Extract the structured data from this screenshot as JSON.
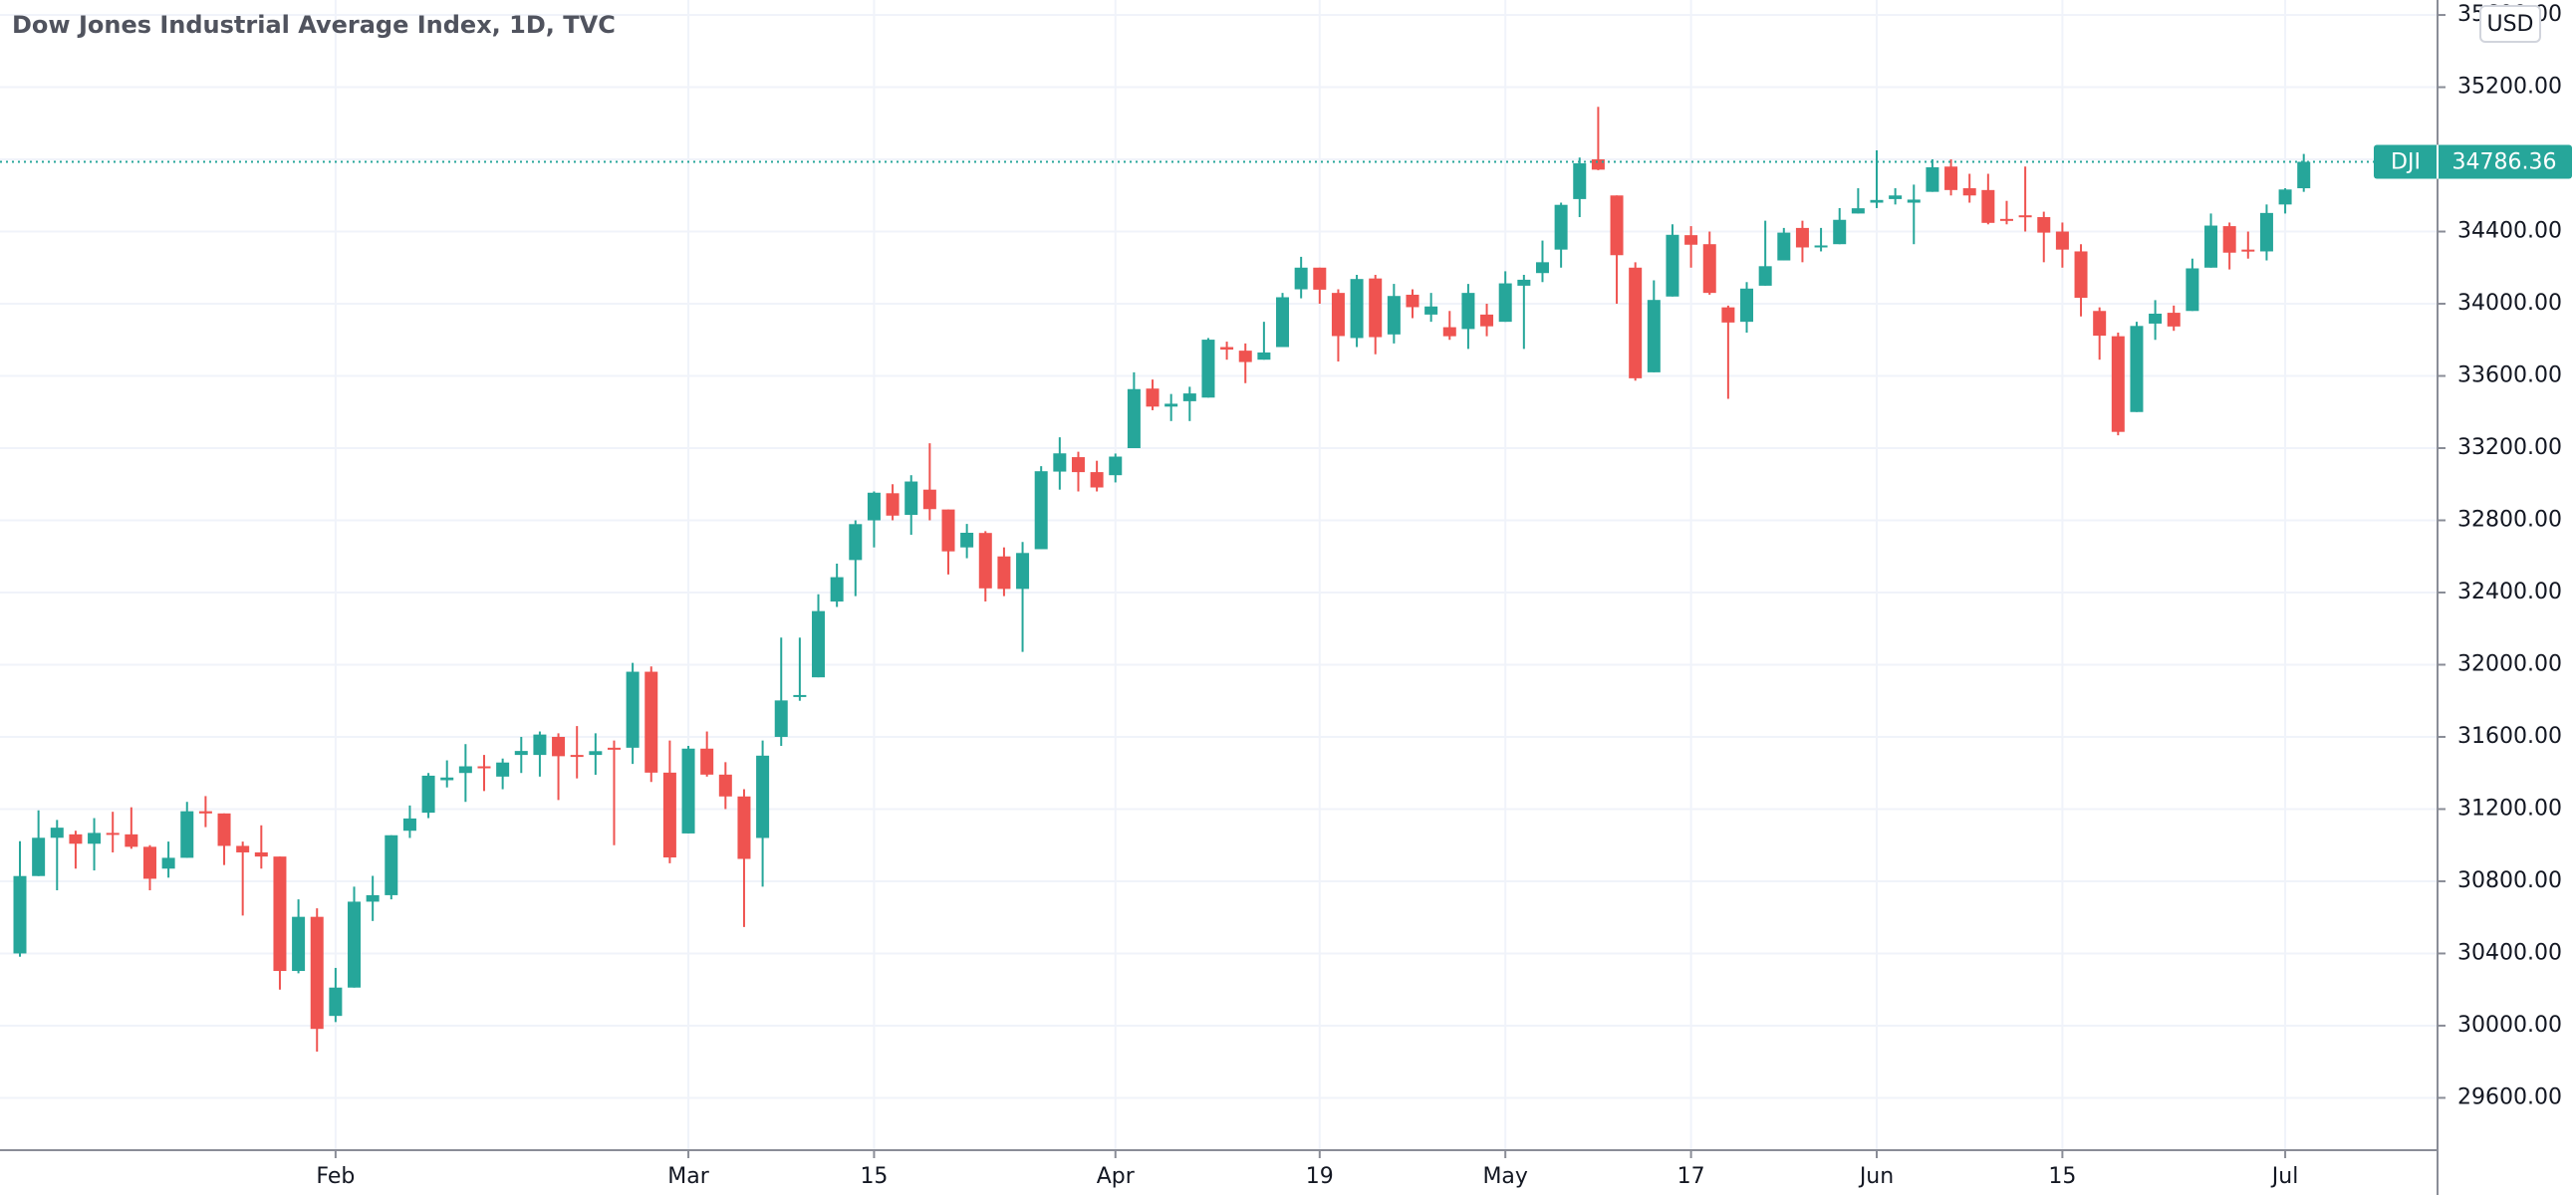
{
  "chart_data": {
    "type": "candlestick",
    "title": "Dow Jones Industrial Average Index, 1D, TVC",
    "currency": "USD",
    "up_color": "#26a69a",
    "down_color": "#ef5350",
    "grid": true,
    "ylim": [
      29310,
      35683
    ],
    "yticks": [
      {
        "value": 29600,
        "label": "29600.00"
      },
      {
        "value": 30000,
        "label": "30000.00"
      },
      {
        "value": 30400,
        "label": "30400.00"
      },
      {
        "value": 30800,
        "label": "30800.00"
      },
      {
        "value": 31200,
        "label": "31200.00"
      },
      {
        "value": 31600,
        "label": "31600.00"
      },
      {
        "value": 32000,
        "label": "32000.00"
      },
      {
        "value": 32400,
        "label": "32400.00"
      },
      {
        "value": 32800,
        "label": "32800.00"
      },
      {
        "value": 33200,
        "label": "33200.00"
      },
      {
        "value": 33600,
        "label": "33600.00"
      },
      {
        "value": 34000,
        "label": "34000.00"
      },
      {
        "value": 34400,
        "label": "34400.00"
      },
      {
        "value": 34800,
        "label": "34800.00"
      },
      {
        "value": 35200,
        "label": "35200.00"
      },
      {
        "value": 35600,
        "label": "35600.00"
      }
    ],
    "last_price": {
      "label": "DJI",
      "value": 34786.36,
      "color": "#26a69a"
    },
    "categories": [
      null,
      null,
      null,
      null,
      null,
      null,
      null,
      null,
      null,
      null,
      null,
      null,
      null,
      null,
      null,
      null,
      null,
      "Feb",
      null,
      null,
      null,
      null,
      null,
      null,
      null,
      null,
      null,
      null,
      null,
      null,
      null,
      null,
      null,
      null,
      null,
      null,
      "Mar",
      null,
      null,
      null,
      null,
      null,
      null,
      null,
      null,
      null,
      "15",
      null,
      null,
      null,
      null,
      null,
      null,
      null,
      null,
      null,
      null,
      null,
      null,
      "Apr",
      null,
      null,
      null,
      null,
      null,
      null,
      null,
      null,
      null,
      null,
      "19",
      null,
      null,
      null,
      null,
      null,
      null,
      null,
      null,
      null,
      "May",
      null,
      null,
      null,
      null,
      null,
      null,
      null,
      null,
      null,
      "17",
      null,
      null,
      null,
      null,
      null,
      null,
      null,
      null,
      null,
      "Jun",
      null,
      null,
      null,
      null,
      null,
      null,
      null,
      null,
      null,
      "15",
      null,
      null,
      null,
      null,
      null,
      null,
      null,
      null,
      null,
      null,
      null,
      "Jul",
      null
    ],
    "open": [
      30400,
      30829,
      31041,
      31060,
      31008,
      31068,
      31060,
      30991,
      30870,
      30930,
      31188,
      31176,
      30996,
      30960,
      30937,
      30303,
      30603,
      30054,
      30211,
      30687,
      30723,
      31080,
      31180,
      31360,
      31400,
      31437,
      31380,
      31500,
      31500,
      31600,
      31500,
      31500,
      31540,
      31540,
      31961,
      31402,
      31065,
      31535,
      31391,
      31270,
      31040,
      31600,
      31830,
      31930,
      32350,
      32580,
      32800,
      32950,
      32830,
      32970,
      32860,
      32650,
      32730,
      32600,
      32420,
      32640,
      33070,
      33150,
      33067,
      33050,
      33200,
      33530,
      33430,
      33460,
      33480,
      33760,
      33740,
      33690,
      33760,
      34080,
      34200,
      34060,
      33810,
      34140,
      33830,
      34050,
      33940,
      33870,
      33860,
      33940,
      33900,
      34100,
      34170,
      34300,
      34580,
      34800,
      34600,
      34200,
      33620,
      34040,
      34380,
      34330,
      33980,
      33900,
      34100,
      34240,
      34420,
      34320,
      34330,
      34500,
      34560,
      34580,
      34560,
      34620,
      34760,
      34640,
      34630,
      34470,
      34490,
      34480,
      34400,
      34290,
      33960,
      33820,
      33400,
      33890,
      33950,
      33960,
      34200,
      34430,
      34300,
      34290,
      34550,
      34640
    ],
    "high": [
      31022,
      31193,
      31140,
      31080,
      31150,
      31185,
      31210,
      31000,
      31020,
      31240,
      31272,
      31176,
      31020,
      31110,
      30937,
      30700,
      30650,
      30320,
      30770,
      30830,
      31055,
      31220,
      31400,
      31470,
      31560,
      31500,
      31480,
      31600,
      31630,
      31620,
      31660,
      31620,
      31580,
      32010,
      31990,
      31580,
      31550,
      31630,
      31460,
      31310,
      31580,
      32150,
      32150,
      32390,
      32560,
      32800,
      32960,
      33000,
      33050,
      33227,
      32860,
      32780,
      32740,
      32650,
      32680,
      33100,
      33260,
      33180,
      33130,
      33170,
      33620,
      33580,
      33500,
      33540,
      33810,
      33790,
      33780,
      33900,
      34060,
      34260,
      34200,
      34080,
      34160,
      34160,
      34110,
      34080,
      34060,
      33960,
      34110,
      34000,
      34180,
      34160,
      34350,
      34560,
      34810,
      35091,
      34600,
      34230,
      34130,
      34440,
      34430,
      34400,
      33990,
      34120,
      34460,
      34420,
      34460,
      34420,
      34530,
      34640,
      34850,
      34640,
      34660,
      34800,
      34800,
      34720,
      34720,
      34570,
      34760,
      34510,
      34450,
      34330,
      33980,
      33840,
      33900,
      34020,
      33990,
      34250,
      34500,
      34450,
      34400,
      34550,
      34640,
      34830
    ],
    "low": [
      30382,
      30829,
      30750,
      30870,
      30860,
      30960,
      30980,
      30750,
      30820,
      30930,
      31100,
      30890,
      30610,
      30870,
      30200,
      30290,
      29856,
      30020,
      30211,
      30580,
      30700,
      31040,
      31150,
      31320,
      31240,
      31300,
      31310,
      31400,
      31380,
      31250,
      31370,
      31390,
      31000,
      31450,
      31350,
      30900,
      31065,
      31380,
      31200,
      30547,
      30770,
      31550,
      31800,
      31930,
      32320,
      32380,
      32650,
      32800,
      32720,
      32800,
      32500,
      32590,
      32350,
      32380,
      32071,
      32640,
      32970,
      32960,
      32960,
      33010,
      33200,
      33410,
      33350,
      33350,
      33480,
      33690,
      33560,
      33690,
      33760,
      34030,
      34000,
      33680,
      33760,
      33720,
      33780,
      33920,
      33900,
      33800,
      33750,
      33820,
      33900,
      33750,
      34120,
      34200,
      34480,
      34740,
      34000,
      33574,
      33620,
      34040,
      34200,
      34050,
      33473,
      33840,
      34100,
      34240,
      34230,
      34290,
      34330,
      34500,
      34530,
      34550,
      34330,
      34620,
      34600,
      34560,
      34440,
      34440,
      34400,
      34230,
      34200,
      33930,
      33690,
      33271,
      33400,
      33800,
      33850,
      33960,
      34200,
      34190,
      34250,
      34240,
      34500,
      34620
    ],
    "close": [
      30829,
      31041,
      31097,
      31008,
      31068,
      31060,
      30991,
      30814,
      30930,
      31188,
      31176,
      30996,
      30960,
      30937,
      30303,
      30603,
      29982,
      30211,
      30687,
      30723,
      31055,
      31148,
      31385,
      31375,
      31437,
      31430,
      31458,
      31522,
      31613,
      31493,
      31494,
      31521,
      31537,
      31961,
      31402,
      30932,
      31535,
      31391,
      31270,
      30924,
      31496,
      31802,
      31832,
      32297,
      32485,
      32779,
      32953,
      32826,
      33015,
      32862,
      32628,
      32731,
      32423,
      32420,
      32619,
      33072,
      33171,
      33067,
      32982,
      33153,
      33527,
      33430,
      33446,
      33503,
      33801,
      33746,
      33677,
      33730,
      34036,
      34200,
      34078,
      33821,
      34137,
      33815,
      34043,
      33981,
      33985,
      33820,
      34060,
      33875,
      34113,
      34133,
      34230,
      34548,
      34778,
      34743,
      34269,
      33587,
      34021,
      34382,
      34327,
      34060,
      33896,
      34084,
      34208,
      34394,
      34312,
      34323,
      34465,
      34529,
      34575,
      34600,
      34577,
      34756,
      34630,
      34600,
      34448,
      34467,
      34480,
      34394,
      34300,
      34033,
      33823,
      33290,
      33877,
      33945,
      33874,
      34196,
      34433,
      34283,
      34292,
      34503,
      34633,
      34786.36
    ]
  }
}
